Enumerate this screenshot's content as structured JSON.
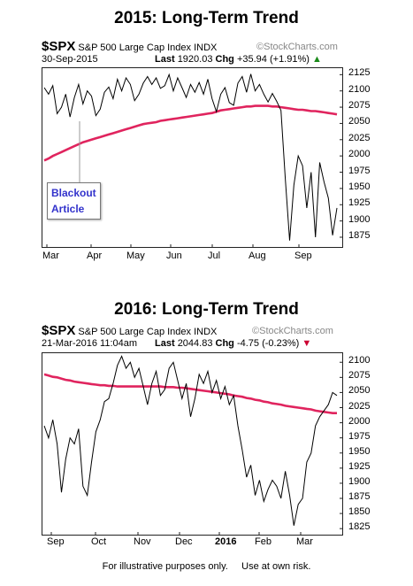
{
  "charts": [
    {
      "title": "2015:  Long-Term Trend",
      "symbol": "$SPX",
      "name": "S&P 500 Large Cap Index",
      "exchange": "INDX",
      "watermark": "©StockCharts.com",
      "date": "30-Sep-2015",
      "last_label": "Last",
      "last_value": "1920.03",
      "chg_label": "Chg",
      "chg_value": "+35.94 (+1.91%)",
      "chg_arrow": "▲",
      "callout": [
        "Blackout",
        "Article"
      ]
    },
    {
      "title": "2016:  Long-Term Trend",
      "symbol": "$SPX",
      "name": "S&P 500 Large Cap Index",
      "exchange": "INDX",
      "watermark": "©StockCharts.com",
      "date": "21-Mar-2016 11:04am",
      "last_label": "Last",
      "last_value": "2044.83",
      "chg_label": "Chg",
      "chg_value": "-4.75 (-0.23%)",
      "chg_arrow": "▼"
    }
  ],
  "footer": "For illustrative purposes only.     Use at own risk.",
  "chart_data": [
    {
      "type": "line",
      "title": "2015:  Long-Term Trend",
      "xlabel": "",
      "ylabel": "",
      "ylim": [
        1860,
        2135
      ],
      "yticks": [
        2125,
        2100,
        2075,
        2050,
        2025,
        2000,
        1975,
        1950,
        1925,
        1900,
        1875
      ],
      "xticks": [
        "Mar",
        "Apr",
        "May",
        "Jun",
        "Jul",
        "Aug",
        "Sep"
      ],
      "grid": false,
      "colors": {
        "price": "#000000",
        "ma": "#e0245e"
      },
      "series": [
        {
          "values": [
            2105,
            2095,
            2108,
            2065,
            2075,
            2095,
            2060,
            2090,
            2110,
            2080,
            2100,
            2092,
            2062,
            2072,
            2098,
            2106,
            2088,
            2118,
            2100,
            2120,
            2110,
            2085,
            2095,
            2112,
            2122,
            2110,
            2120,
            2104,
            2108,
            2125,
            2100,
            2120,
            2105,
            2090,
            2110,
            2098,
            2113,
            2095,
            2118,
            2088,
            2068,
            2095,
            2105,
            2082,
            2078,
            2112,
            2122,
            2098,
            2126,
            2100,
            2110,
            2095,
            2083,
            2096,
            2084,
            2070,
            1965,
            1870,
            1955,
            2000,
            1985,
            1920,
            1975,
            1875,
            1990,
            1960,
            1935,
            1878,
            1920
          ]
        },
        {
          "values": [
            1993,
            1996,
            2000,
            2003,
            2006,
            2009,
            2012,
            2015,
            2018,
            2021,
            2023,
            2025,
            2027,
            2029,
            2031,
            2033,
            2035,
            2037,
            2039,
            2041,
            2043,
            2045,
            2047,
            2049,
            2050,
            2051,
            2052,
            2054,
            2055,
            2056,
            2057,
            2058,
            2059,
            2060,
            2061,
            2062,
            2063,
            2064,
            2065,
            2066,
            2068,
            2070,
            2071,
            2072,
            2073,
            2074,
            2075,
            2076,
            2076,
            2077,
            2077,
            2077,
            2077,
            2076,
            2076,
            2075,
            2074,
            2073,
            2072,
            2071,
            2071,
            2070,
            2069,
            2069,
            2068,
            2067,
            2066,
            2065,
            2064
          ]
        }
      ]
    },
    {
      "type": "line",
      "title": "2016:  Long-Term Trend",
      "xlabel": "",
      "ylabel": "",
      "ylim": [
        1815,
        2115
      ],
      "yticks": [
        2100,
        2075,
        2050,
        2025,
        2000,
        1975,
        1950,
        1925,
        1900,
        1875,
        1850,
        1825
      ],
      "xticks": [
        "Sep",
        "Oct",
        "Nov",
        "Dec",
        "2016",
        "Feb",
        "Mar"
      ],
      "grid": false,
      "colors": {
        "price": "#000000",
        "ma": "#e0245e"
      },
      "series": [
        {
          "values": [
            1995,
            1975,
            2005,
            1965,
            1885,
            1940,
            1975,
            1965,
            1990,
            1895,
            1880,
            1935,
            1985,
            2005,
            2035,
            2040,
            2065,
            2095,
            2110,
            2090,
            2100,
            2075,
            2090,
            2060,
            2030,
            2065,
            2085,
            2045,
            2055,
            2090,
            2100,
            2070,
            2040,
            2065,
            2010,
            2040,
            2080,
            2065,
            2085,
            2050,
            2070,
            2040,
            2060,
            2030,
            2045,
            1995,
            1955,
            1910,
            1930,
            1880,
            1905,
            1870,
            1890,
            1905,
            1895,
            1875,
            1920,
            1880,
            1830,
            1865,
            1875,
            1935,
            1950,
            1995,
            2010,
            2020,
            2030,
            2050,
            2045
          ]
        },
        {
          "values": [
            2080,
            2078,
            2076,
            2075,
            2073,
            2071,
            2070,
            2068,
            2067,
            2066,
            2065,
            2064,
            2063,
            2062,
            2062,
            2061,
            2061,
            2060,
            2060,
            2060,
            2060,
            2060,
            2060,
            2060,
            2060,
            2060,
            2060,
            2060,
            2059,
            2059,
            2059,
            2058,
            2058,
            2057,
            2056,
            2055,
            2054,
            2053,
            2052,
            2051,
            2050,
            2049,
            2048,
            2047,
            2045,
            2044,
            2043,
            2041,
            2040,
            2038,
            2037,
            2035,
            2034,
            2032,
            2031,
            2030,
            2028,
            2027,
            2026,
            2025,
            2024,
            2023,
            2022,
            2020,
            2019,
            2018,
            2017,
            2016,
            2016
          ]
        }
      ]
    }
  ]
}
